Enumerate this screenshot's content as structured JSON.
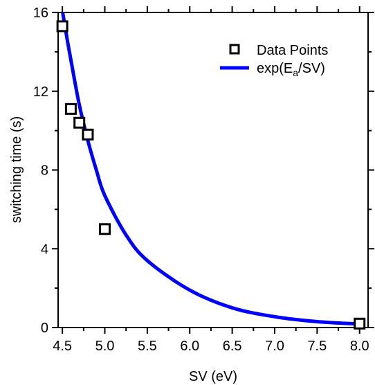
{
  "chart_data": {
    "type": "scatter",
    "xlabel": "SV (eV)",
    "ylabel": "switching time (s)",
    "xlim": [
      4.45,
      8.1
    ],
    "ylim": [
      0,
      16
    ],
    "x_ticks": [
      "4.5",
      "5.0",
      "5.5",
      "6.0",
      "6.5",
      "7.0",
      "7.5",
      "8.0"
    ],
    "x_tick_values": [
      4.5,
      5.0,
      5.5,
      6.0,
      6.5,
      7.0,
      7.5,
      8.0
    ],
    "y_ticks": [
      "0",
      "4",
      "8",
      "12",
      "16"
    ],
    "y_tick_values": [
      0,
      4,
      8,
      12,
      16
    ],
    "series": [
      {
        "name": "Data Points",
        "kind": "scatter",
        "marker": "open-square",
        "color": "#000000",
        "x": [
          4.5,
          4.6,
          4.7,
          4.8,
          5.0,
          8.0
        ],
        "y": [
          15.3,
          11.1,
          10.4,
          9.8,
          5.0,
          0.2
        ]
      },
      {
        "name": "exp(E",
        "name_sub": "a",
        "name_tail": "/SV)",
        "kind": "line",
        "color": "#0000ff",
        "x": [
          4.5,
          4.55,
          4.6,
          4.7,
          4.8,
          4.9,
          5.0,
          5.25,
          5.5,
          6.0,
          6.5,
          7.0,
          7.5,
          8.0
        ],
        "y": [
          16.1,
          14.8,
          13.6,
          11.3,
          9.5,
          8.0,
          6.7,
          4.7,
          3.4,
          1.9,
          1.0,
          0.55,
          0.3,
          0.18
        ]
      }
    ],
    "legend_position": "top-right",
    "grid": false
  }
}
